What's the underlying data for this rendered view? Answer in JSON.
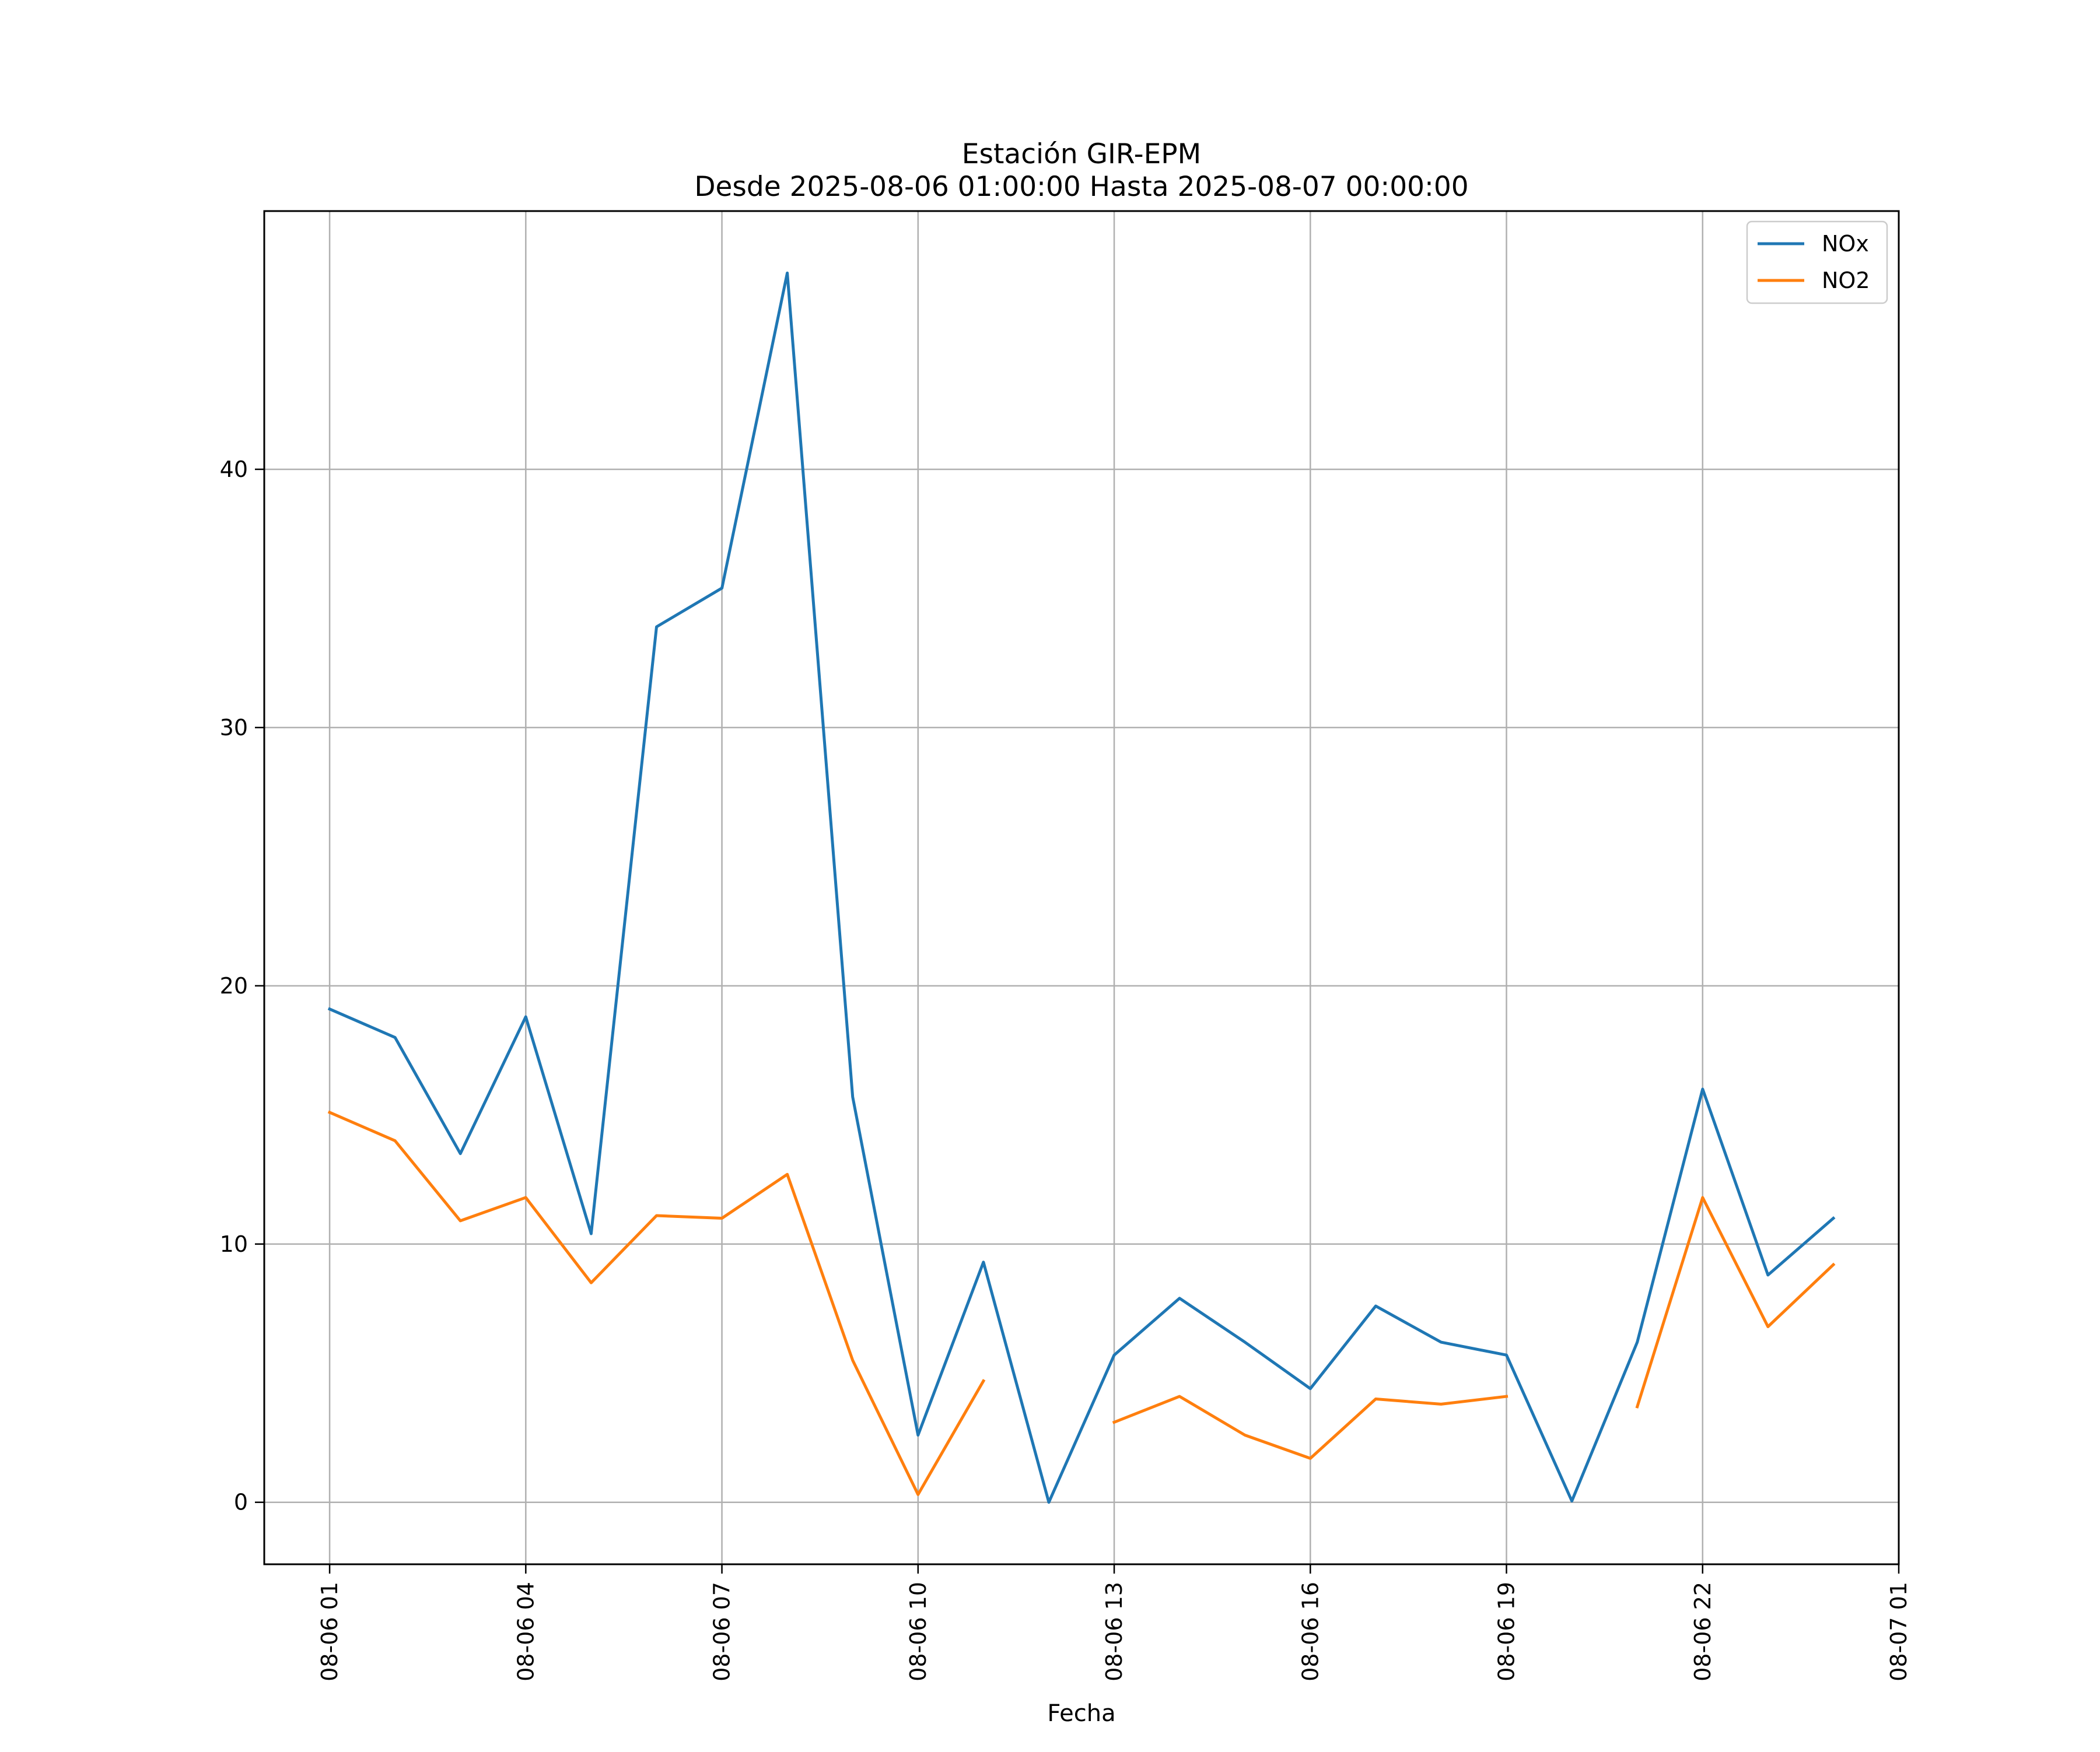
{
  "chart_data": {
    "type": "line",
    "title": "Estación GIR-EPM",
    "subtitle": "Desde 2025-08-06 01:00:00 Hasta 2025-08-07 00:00:00",
    "xlabel": "Fecha",
    "ylabel": "",
    "x": [
      "2025-08-06 01:00",
      "2025-08-06 02:00",
      "2025-08-06 03:00",
      "2025-08-06 04:00",
      "2025-08-06 05:00",
      "2025-08-06 06:00",
      "2025-08-06 07:00",
      "2025-08-06 08:00",
      "2025-08-06 09:00",
      "2025-08-06 10:00",
      "2025-08-06 11:00",
      "2025-08-06 12:00",
      "2025-08-06 13:00",
      "2025-08-06 14:00",
      "2025-08-06 15:00",
      "2025-08-06 16:00",
      "2025-08-06 17:00",
      "2025-08-06 18:00",
      "2025-08-06 19:00",
      "2025-08-06 20:00",
      "2025-08-06 21:00",
      "2025-08-06 22:00",
      "2025-08-06 23:00",
      "2025-08-07 00:00"
    ],
    "series": [
      {
        "name": "NOx",
        "color": "#1f77b4",
        "values": [
          19.1,
          18.0,
          13.5,
          18.8,
          10.4,
          33.9,
          35.4,
          47.6,
          15.7,
          2.6,
          9.3,
          0.0,
          5.7,
          7.9,
          6.2,
          4.4,
          7.6,
          6.2,
          5.7,
          0.05,
          6.2,
          16.0,
          8.8,
          11.0
        ]
      },
      {
        "name": "NO2",
        "color": "#ff7f0e",
        "values": [
          15.1,
          14.0,
          10.9,
          11.8,
          8.5,
          11.1,
          11.0,
          12.7,
          5.5,
          0.3,
          4.7,
          null,
          3.1,
          4.1,
          2.6,
          1.7,
          4.0,
          3.8,
          4.1,
          null,
          3.7,
          11.8,
          6.8,
          9.2
        ]
      }
    ],
    "xticks": [
      "08-06 01",
      "08-06 04",
      "08-06 07",
      "08-06 10",
      "08-06 13",
      "08-06 16",
      "08-06 19",
      "08-06 22",
      "08-07 01"
    ],
    "yticks": [
      0,
      10,
      20,
      30,
      40
    ],
    "xlim": [
      "2025-08-06 00:00",
      "2025-08-07 01:00"
    ],
    "ylim": [
      -2.4,
      50.0
    ],
    "grid": true,
    "legend": "top-right"
  }
}
